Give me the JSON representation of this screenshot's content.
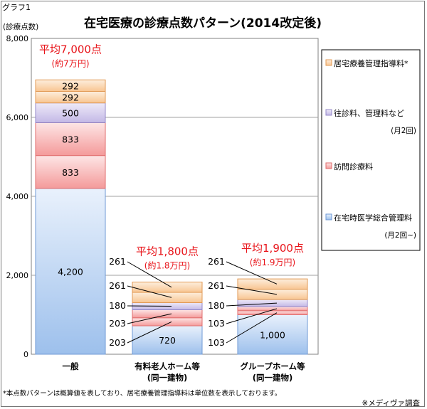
{
  "figure_label": "グラフ1",
  "footnote": "*本点数パターンは概算値を表しており、居宅療養管理指導料は単位数を表示しております。",
  "source": "※メディヴァ調査",
  "chart_data": {
    "type": "bar",
    "stacked": true,
    "title": "在宅医療の診療点数パターン(2014改定後)",
    "ylabel": "(診療点数)",
    "ylim": [
      0,
      8000
    ],
    "yticks": [
      0,
      2000,
      4000,
      6000,
      8000
    ],
    "ytick_labels": [
      "0",
      "2,000",
      "4,000",
      "6,000",
      "8,000"
    ],
    "categories": [
      {
        "line1": "一般",
        "line2": ""
      },
      {
        "line1": "有料老人ホーム等",
        "line2": "(同一建物)"
      },
      {
        "line1": "グループホーム等",
        "line2": "(同一建物)"
      }
    ],
    "colors": {
      "home_medical": "#9dc0ec",
      "visit": "#f49a9a",
      "house_call": "#c3b8e6",
      "guidance": "#f8c592"
    },
    "segments": [
      [
        {
          "series": "home_medical",
          "value": 4200,
          "label": "4,200"
        },
        {
          "series": "visit",
          "value": 833,
          "label": "833"
        },
        {
          "series": "visit",
          "value": 833,
          "label": "833"
        },
        {
          "series": "house_call",
          "value": 500,
          "label": "500"
        },
        {
          "series": "guidance",
          "value": 292,
          "label": "292"
        },
        {
          "series": "guidance",
          "value": 292,
          "label": "292"
        }
      ],
      [
        {
          "series": "home_medical",
          "value": 720,
          "label": "720"
        },
        {
          "series": "visit",
          "value": 203,
          "label": "203"
        },
        {
          "series": "visit",
          "value": 203,
          "label": "203"
        },
        {
          "series": "house_call",
          "value": 180,
          "label": "180"
        },
        {
          "series": "guidance",
          "value": 261,
          "label": "261"
        },
        {
          "series": "guidance",
          "value": 261,
          "label": "261"
        }
      ],
      [
        {
          "series": "home_medical",
          "value": 1000,
          "label": "1,000"
        },
        {
          "series": "visit",
          "value": 103,
          "label": "103"
        },
        {
          "series": "visit",
          "value": 103,
          "label": "103"
        },
        {
          "series": "house_call",
          "value": 180,
          "label": "180"
        },
        {
          "series": "guidance",
          "value": 261,
          "label": "261"
        },
        {
          "series": "guidance",
          "value": 261,
          "label": "261"
        }
      ]
    ],
    "averages": [
      {
        "line1": "平均7,000点",
        "line2": "(約7万円)"
      },
      {
        "line1": "平均1,800点",
        "line2": "(約1.8万円)"
      },
      {
        "line1": "平均1,900点",
        "line2": "(約1.9万円)"
      }
    ],
    "legend": [
      {
        "series": "guidance",
        "label": "居宅療養管理指導料*",
        "sub": ""
      },
      {
        "series": "house_call",
        "label": "往診料、管理料など",
        "sub": "(月2回)"
      },
      {
        "series": "visit",
        "label": "訪問診療料",
        "sub": ""
      },
      {
        "series": "home_medical",
        "label": "在宅時医学総合管理料",
        "sub": "(月2回~)"
      }
    ]
  }
}
